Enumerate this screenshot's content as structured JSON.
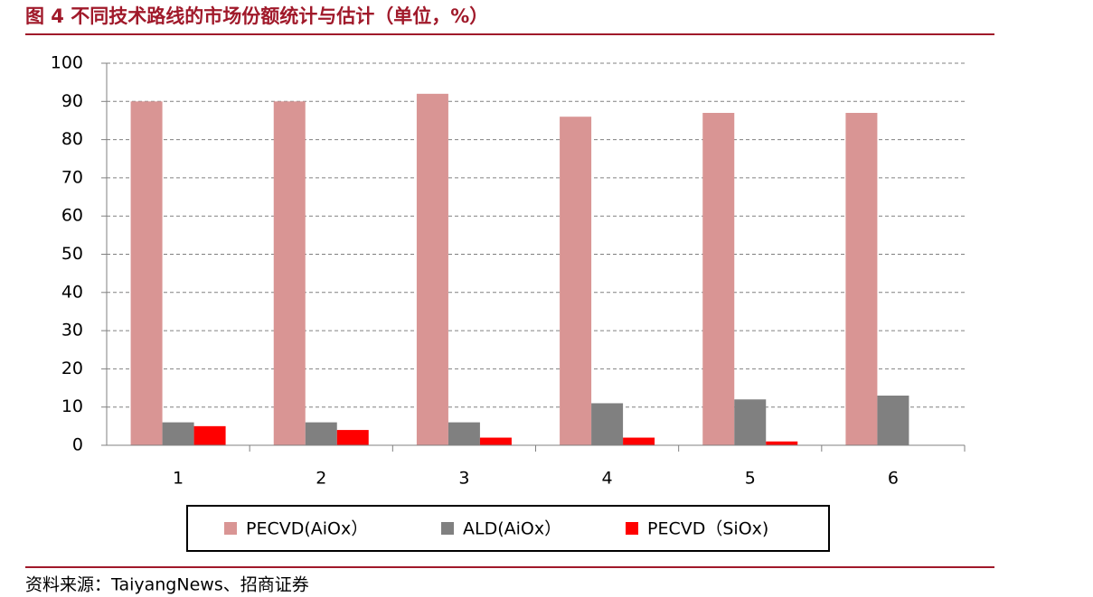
{
  "chart_data": {
    "type": "bar",
    "title": "图 4  不同技术路线的市场份额统计与估计（单位，%）",
    "source": "资料来源：TaiyangNews、招商证券",
    "categories": [
      "1",
      "2",
      "3",
      "4",
      "5",
      "6"
    ],
    "series": [
      {
        "name": "PECVD(AiOx）",
        "color": "#d99594",
        "values": [
          90,
          90,
          92,
          86,
          87,
          87
        ]
      },
      {
        "name": "ALD(AiOx）",
        "color": "#808080",
        "values": [
          6,
          6,
          6,
          11,
          12,
          13
        ]
      },
      {
        "name": "PECVD（SiOx)",
        "color": "#ff0000",
        "values": [
          5,
          4,
          2,
          2,
          1,
          0
        ]
      }
    ],
    "ylim": [
      0,
      100
    ],
    "yticks": [
      0,
      10,
      20,
      30,
      40,
      50,
      60,
      70,
      80,
      90,
      100
    ],
    "grid": true
  }
}
